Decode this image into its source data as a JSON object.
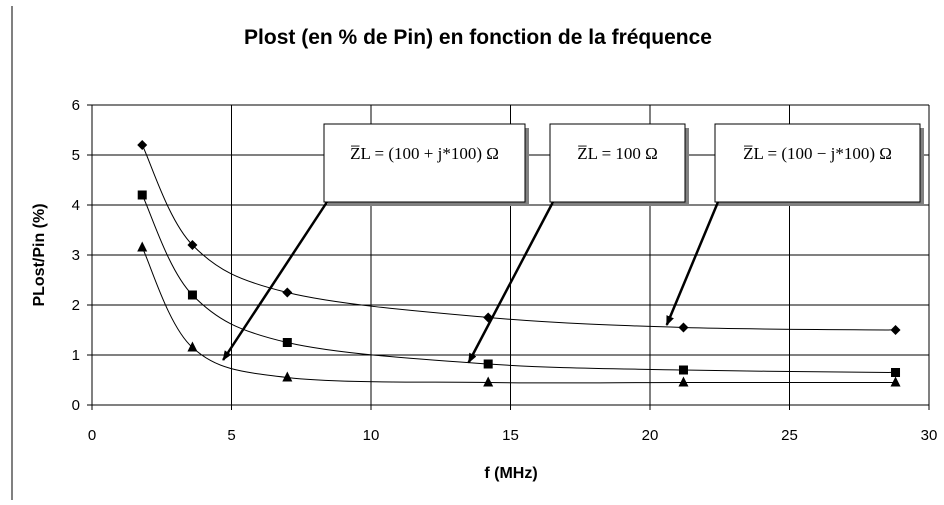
{
  "chart_data": {
    "type": "scatter",
    "title": "Plost (en % de Pin) en fonction de la fréquence",
    "xlabel": "f (MHz)",
    "ylabel": "PLost/Pin (%)",
    "xlim": [
      0,
      30
    ],
    "ylim": [
      0,
      6
    ],
    "x_ticks": [
      "0",
      "5",
      "10",
      "15",
      "20",
      "25",
      "30"
    ],
    "y_ticks": [
      "0",
      "1",
      "2",
      "3",
      "4",
      "5",
      "6"
    ],
    "grid": true,
    "series": [
      {
        "marker": "diamond",
        "x": [
          1.8,
          3.6,
          7.0,
          14.2,
          21.2,
          28.8
        ],
        "y": [
          5.2,
          3.2,
          2.25,
          1.75,
          1.55,
          1.5
        ]
      },
      {
        "marker": "square",
        "x": [
          1.8,
          3.6,
          7.0,
          14.2,
          21.2,
          28.8
        ],
        "y": [
          4.2,
          2.2,
          1.25,
          0.82,
          0.7,
          0.65
        ]
      },
      {
        "marker": "triangle",
        "x": [
          1.8,
          3.6,
          7.0,
          14.2,
          21.2,
          28.8
        ],
        "y": [
          3.15,
          1.15,
          0.55,
          0.45,
          0.45,
          0.45
        ]
      }
    ],
    "annotations": [
      {
        "text": "Z̅L = (100 + j*100) Ω",
        "target": [
          4.7,
          0.9
        ]
      },
      {
        "text": "Z̅L = 100 Ω",
        "target": [
          13.5,
          0.85
        ]
      },
      {
        "text": "Z̅L = (100 − j*100) Ω",
        "target": [
          20.6,
          1.6
        ]
      }
    ]
  }
}
